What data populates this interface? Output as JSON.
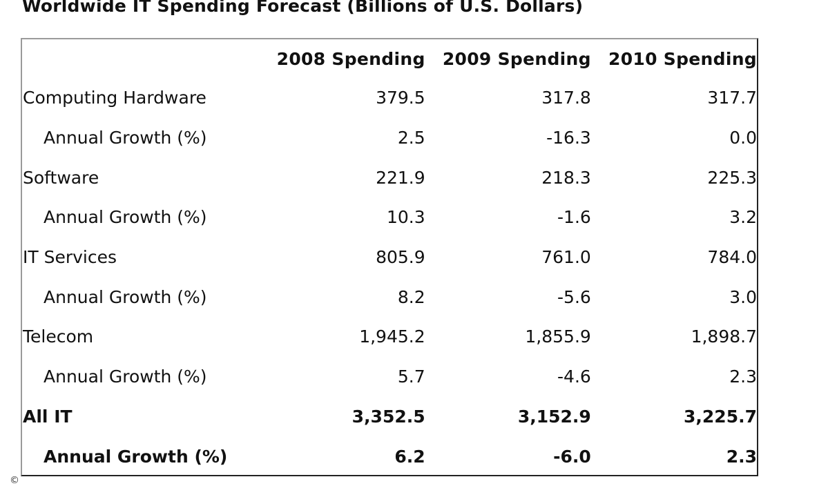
{
  "title": "Worldwide IT Spending Forecast (Billions of U.S. Dollars)",
  "table": {
    "headers": [
      "",
      "2008 Spending",
      "2009 Spending",
      "2010 Spending"
    ],
    "rows": [
      {
        "label": "Computing Hardware",
        "values": [
          "379.5",
          "317.8",
          "317.7"
        ]
      },
      {
        "label": "Annual Growth (%)",
        "values": [
          "2.5",
          "-16.3",
          "0.0"
        ]
      },
      {
        "label": "Software",
        "values": [
          "221.9",
          "218.3",
          "225.3"
        ]
      },
      {
        "label": "Annual Growth (%)",
        "values": [
          "10.3",
          "-1.6",
          "3.2"
        ]
      },
      {
        "label": "IT Services",
        "values": [
          "805.9",
          "761.0",
          "784.0"
        ]
      },
      {
        "label": "Annual Growth (%)",
        "values": [
          "8.2",
          "-5.6",
          "3.0"
        ]
      },
      {
        "label": "Telecom",
        "values": [
          "1,945.2",
          "1,855.9",
          "1,898.7"
        ]
      },
      {
        "label": "Annual Growth (%)",
        "values": [
          "5.7",
          "-4.6",
          "2.3"
        ]
      },
      {
        "label": "All IT",
        "values": [
          "3,352.5",
          "3,152.9",
          "3,225.7"
        ]
      },
      {
        "label": "Annual Growth (%)",
        "values": [
          "6.2",
          "-6.0",
          "2.3"
        ]
      }
    ]
  },
  "watermark": {
    "icon": "copyright-icon",
    "symbol": "©"
  }
}
